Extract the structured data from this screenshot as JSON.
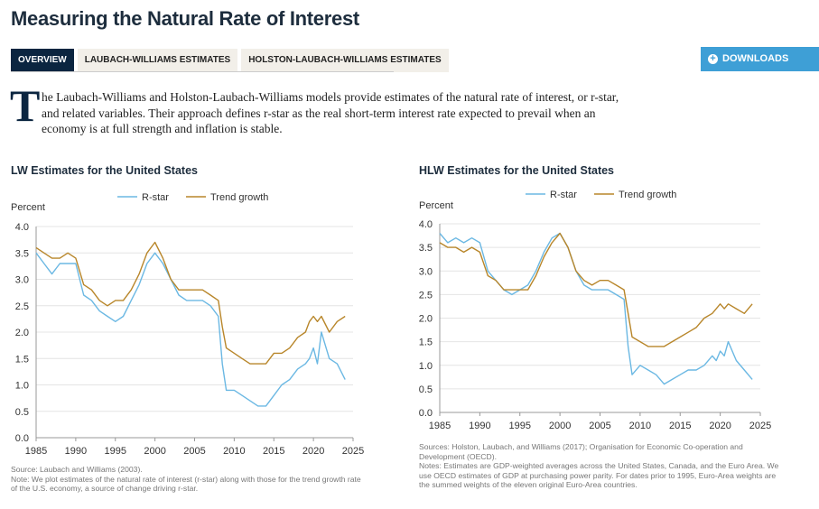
{
  "page": {
    "title": "Measuring the Natural Rate of Interest",
    "tabs": [
      {
        "label": "OVERVIEW",
        "active": true
      },
      {
        "label": "LAUBACH-WILLIAMS ESTIMATES",
        "active": false
      },
      {
        "label": "HOLSTON-LAUBACH-WILLIAMS ESTIMATES",
        "active": false
      }
    ],
    "downloads_label": "DOWNLOADS",
    "intro_dropcap": "T",
    "intro_text": "he Laubach-Williams and Holston-Laubach-Williams models provide estimates of the natural rate of interest, or r-star, and related variables. Their approach defines r-star as the real short-term interest rate expected to prevail when an economy is at full strength and inflation is stable.",
    "colors": {
      "rstar": "#6bb8e3",
      "trend": "#b8862a",
      "accent": "#3e9fd6",
      "navy": "#0b2540"
    }
  },
  "chart_data": [
    {
      "type": "line",
      "title": "LW Estimates for the United States",
      "ylabel": "Percent",
      "xlabel": "",
      "xlim": [
        1985,
        2025
      ],
      "ylim": [
        0,
        4
      ],
      "xticks": [
        "1985",
        "1990",
        "1995",
        "2000",
        "2005",
        "2010",
        "2015",
        "2020",
        "2025"
      ],
      "yticks": [
        "0.0",
        "0.5",
        "1.0",
        "1.5",
        "2.0",
        "2.5",
        "3.0",
        "3.5",
        "4.0"
      ],
      "grid": true,
      "legend": "top-center",
      "series": [
        {
          "name": "R-star",
          "color": "#6bb8e3",
          "x": [
            1985,
            1986,
            1987,
            1988,
            1989,
            1990,
            1991,
            1992,
            1993,
            1994,
            1995,
            1996,
            1997,
            1998,
            1999,
            2000,
            2001,
            2002,
            2003,
            2004,
            2005,
            2006,
            2007,
            2008,
            2008.5,
            2009,
            2010,
            2011,
            2012,
            2013,
            2014,
            2015,
            2016,
            2017,
            2018,
            2019,
            2019.5,
            2020,
            2020.5,
            2021,
            2022,
            2023,
            2024
          ],
          "y": [
            3.5,
            3.3,
            3.1,
            3.3,
            3.3,
            3.3,
            2.7,
            2.6,
            2.4,
            2.3,
            2.2,
            2.3,
            2.6,
            2.9,
            3.3,
            3.5,
            3.3,
            3.0,
            2.7,
            2.6,
            2.6,
            2.6,
            2.5,
            2.3,
            1.4,
            0.9,
            0.9,
            0.8,
            0.7,
            0.6,
            0.6,
            0.8,
            1.0,
            1.1,
            1.3,
            1.4,
            1.5,
            1.7,
            1.4,
            2.0,
            1.5,
            1.4,
            1.1
          ]
        },
        {
          "name": "Trend growth",
          "color": "#b8862a",
          "x": [
            1985,
            1986,
            1987,
            1988,
            1989,
            1990,
            1991,
            1992,
            1993,
            1994,
            1995,
            1996,
            1997,
            1998,
            1999,
            2000,
            2001,
            2002,
            2003,
            2004,
            2005,
            2006,
            2007,
            2008,
            2008.5,
            2009,
            2010,
            2011,
            2012,
            2013,
            2014,
            2015,
            2016,
            2017,
            2018,
            2019,
            2019.5,
            2020,
            2020.5,
            2021,
            2022,
            2023,
            2024
          ],
          "y": [
            3.6,
            3.5,
            3.4,
            3.4,
            3.5,
            3.4,
            2.9,
            2.8,
            2.6,
            2.5,
            2.6,
            2.6,
            2.8,
            3.1,
            3.5,
            3.7,
            3.4,
            3.0,
            2.8,
            2.8,
            2.8,
            2.8,
            2.7,
            2.6,
            2.1,
            1.7,
            1.6,
            1.5,
            1.4,
            1.4,
            1.4,
            1.6,
            1.6,
            1.7,
            1.9,
            2.0,
            2.2,
            2.3,
            2.2,
            2.3,
            2.0,
            2.2,
            2.3
          ]
        }
      ],
      "notes": [
        "Source: Laubach and Williams (2003).",
        "Note: We plot estimates of the natural rate of interest (r-star) along with those for the trend growth rate of the U.S. economy, a source of change driving r-star."
      ]
    },
    {
      "type": "line",
      "title": "HLW Estimates for the United States",
      "ylabel": "Percent",
      "xlabel": "",
      "xlim": [
        1985,
        2025
      ],
      "ylim": [
        0,
        4
      ],
      "xticks": [
        "1985",
        "1990",
        "1995",
        "2000",
        "2005",
        "2010",
        "2015",
        "2020",
        "2025"
      ],
      "yticks": [
        "0.0",
        "0.5",
        "1.0",
        "1.5",
        "2.0",
        "2.5",
        "3.0",
        "3.5",
        "4.0"
      ],
      "grid": true,
      "legend": "top-center",
      "series": [
        {
          "name": "R-star",
          "color": "#6bb8e3",
          "x": [
            1985,
            1986,
            1987,
            1988,
            1989,
            1990,
            1991,
            1992,
            1993,
            1994,
            1995,
            1996,
            1997,
            1998,
            1999,
            2000,
            2001,
            2002,
            2003,
            2004,
            2005,
            2006,
            2007,
            2008,
            2008.5,
            2009,
            2010,
            2011,
            2012,
            2013,
            2014,
            2015,
            2016,
            2017,
            2018,
            2019,
            2019.5,
            2020,
            2020.5,
            2021,
            2022,
            2023,
            2024
          ],
          "y": [
            3.8,
            3.6,
            3.7,
            3.6,
            3.7,
            3.6,
            3.0,
            2.8,
            2.6,
            2.5,
            2.6,
            2.7,
            3.0,
            3.4,
            3.7,
            3.8,
            3.5,
            3.0,
            2.7,
            2.6,
            2.6,
            2.6,
            2.5,
            2.4,
            1.4,
            0.8,
            1.0,
            0.9,
            0.8,
            0.6,
            0.7,
            0.8,
            0.9,
            0.9,
            1.0,
            1.2,
            1.1,
            1.3,
            1.2,
            1.5,
            1.1,
            0.9,
            0.7
          ]
        },
        {
          "name": "Trend growth",
          "color": "#b8862a",
          "x": [
            1985,
            1986,
            1987,
            1988,
            1989,
            1990,
            1991,
            1992,
            1993,
            1994,
            1995,
            1996,
            1997,
            1998,
            1999,
            2000,
            2001,
            2002,
            2003,
            2004,
            2005,
            2006,
            2007,
            2008,
            2008.5,
            2009,
            2010,
            2011,
            2012,
            2013,
            2014,
            2015,
            2016,
            2017,
            2018,
            2019,
            2019.5,
            2020,
            2020.5,
            2021,
            2022,
            2023,
            2024
          ],
          "y": [
            3.6,
            3.5,
            3.5,
            3.4,
            3.5,
            3.4,
            2.9,
            2.8,
            2.6,
            2.6,
            2.6,
            2.6,
            2.9,
            3.3,
            3.6,
            3.8,
            3.5,
            3.0,
            2.8,
            2.7,
            2.8,
            2.8,
            2.7,
            2.6,
            2.1,
            1.6,
            1.5,
            1.4,
            1.4,
            1.4,
            1.5,
            1.6,
            1.7,
            1.8,
            2.0,
            2.1,
            2.2,
            2.3,
            2.2,
            2.3,
            2.2,
            2.1,
            2.3
          ]
        }
      ],
      "notes": [
        "Sources: Holston, Laubach, and Williams (2017); Organisation for Economic Co-operation and Development (OECD).",
        "Notes: Estimates are GDP-weighted averages across the United States, Canada, and the Euro Area. We use OECD estimates of GDP at purchasing power parity. For dates prior to 1995, Euro-Area weights are the summed weights of the eleven original Euro-Area countries."
      ]
    }
  ]
}
